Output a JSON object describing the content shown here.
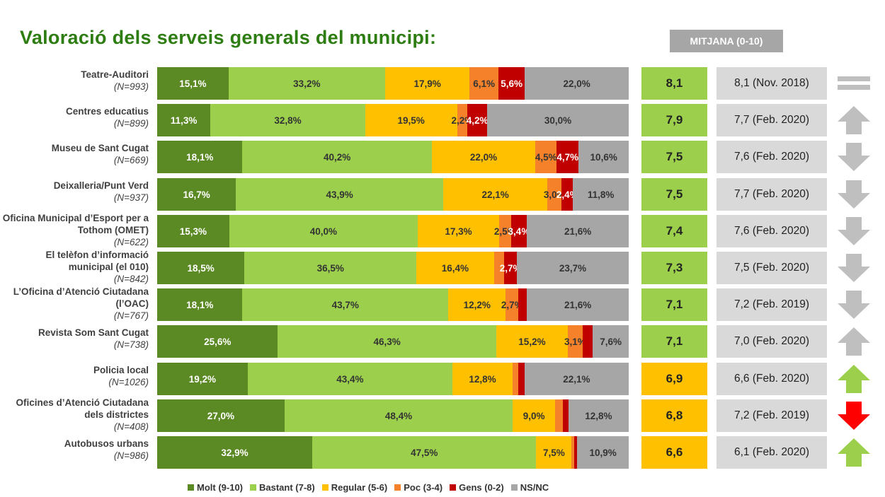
{
  "title": "Valoració dels serveis generals del municipi:",
  "mitjana_header": "MITJANA (0-10)",
  "colors": {
    "molt": "#5b8a25",
    "bastant": "#9bcf4c",
    "regular": "#ffc000",
    "poc": "#f5822a",
    "gens": "#c00000",
    "nsnc": "#a6a6a6",
    "score_green": "#9bcf4c",
    "score_yellow": "#ffc000",
    "arrow_grey": "#bfbfbf",
    "arrow_green": "#9bcf4c",
    "arrow_red": "#ff0000"
  },
  "chart_data": {
    "type": "bar",
    "orientation": "horizontal-stacked-100",
    "series": [
      {
        "name": "Molt (9-10)",
        "key": "molt"
      },
      {
        "name": "Bastant (7-8)",
        "key": "bastant"
      },
      {
        "name": "Regular (5-6)",
        "key": "regular"
      },
      {
        "name": "Poc (3-4)",
        "key": "poc"
      },
      {
        "name": "Gens (0-2)",
        "key": "gens"
      },
      {
        "name": "NS/NC",
        "key": "nsnc"
      }
    ],
    "rows": [
      {
        "name": "Teatre-Auditori",
        "n": "(N=993)",
        "values": [
          15.1,
          33.2,
          17.9,
          6.1,
          5.6,
          22.0
        ],
        "labels": [
          "15,1%",
          "33,2%",
          "17,9%",
          "6,1%",
          "5,6%",
          "22,0%"
        ],
        "score": "8,1",
        "score_color": "green",
        "previous": "8,1 (Nov. 2018)",
        "trend": "equal"
      },
      {
        "name": "Centres educatius",
        "n": "(N=899)",
        "values": [
          11.3,
          32.8,
          19.5,
          2.2,
          4.2,
          30.0
        ],
        "labels": [
          "11,3%",
          "32,8%",
          "19,5%",
          "2,2%",
          "4,2%",
          "30,0%"
        ],
        "score": "7,9",
        "score_color": "green",
        "previous": "7,7 (Feb. 2020)",
        "trend": "up-grey"
      },
      {
        "name": "Museu de Sant Cugat",
        "n": "(N=669)",
        "values": [
          18.1,
          40.2,
          22.0,
          4.5,
          4.7,
          10.6
        ],
        "labels": [
          "18,1%",
          "40,2%",
          "22,0%",
          "4,5%",
          "4,7%",
          "10,6%"
        ],
        "score": "7,5",
        "score_color": "green",
        "previous": "7,6 (Feb. 2020)",
        "trend": "down-grey"
      },
      {
        "name": "Deixalleria/Punt Verd",
        "n": "(N=937)",
        "values": [
          16.7,
          43.9,
          22.1,
          3.0,
          2.4,
          11.8
        ],
        "labels": [
          "16,7%",
          "43,9%",
          "22,1%",
          "3,0%",
          "2,4%",
          "11,8%"
        ],
        "score": "7,5",
        "score_color": "green",
        "previous": "7,7 (Feb. 2020)",
        "trend": "down-grey"
      },
      {
        "name": "Oficina Municipal d’Esport per a Tothom (OMET)",
        "n": "(N=622)",
        "values": [
          15.3,
          40.0,
          17.3,
          2.5,
          3.4,
          21.6
        ],
        "labels": [
          "15,3%",
          "40,0%",
          "17,3%",
          "2,5%",
          "3,4%",
          "21,6%"
        ],
        "score": "7,4",
        "score_color": "green",
        "previous": "7,6 (Feb. 2020)",
        "trend": "down-grey"
      },
      {
        "name": "El telèfon d’informació municipal (el 010)",
        "n": "(N=842)",
        "values": [
          18.5,
          36.5,
          16.4,
          2.2,
          2.7,
          23.7
        ],
        "labels": [
          "18,5%",
          "36,5%",
          "16,4%",
          "",
          "2,7%",
          "23,7%"
        ],
        "score": "7,3",
        "score_color": "green",
        "previous": "7,5 (Feb. 2020)",
        "trend": "down-grey"
      },
      {
        "name": "L’Oficina d’Atenció Ciutadana (l’OAC)",
        "n": "(N=767)",
        "values": [
          18.1,
          43.7,
          12.2,
          2.7,
          1.8,
          21.6
        ],
        "labels": [
          "18,1%",
          "43,7%",
          "12,2%",
          "2,7%",
          "",
          "21,6%"
        ],
        "score": "7,1",
        "score_color": "green",
        "previous": "7,2 (Feb. 2019)",
        "trend": "down-grey"
      },
      {
        "name": "Revista Som Sant Cugat",
        "n": "(N=738)",
        "values": [
          25.6,
          46.3,
          15.2,
          3.1,
          2.2,
          7.6
        ],
        "labels": [
          "25,6%",
          "46,3%",
          "15,2%",
          "3,1%",
          "",
          "7,6%"
        ],
        "score": "7,1",
        "score_color": "green",
        "previous": "7,0 (Feb. 2020)",
        "trend": "up-grey"
      },
      {
        "name": "Policia local",
        "n": "(N=1026)",
        "values": [
          19.2,
          43.4,
          12.8,
          1.2,
          1.3,
          22.1
        ],
        "labels": [
          "19,2%",
          "43,4%",
          "12,8%",
          "",
          "",
          "22,1%"
        ],
        "score": "6,9",
        "score_color": "yellow",
        "previous": "6,6 (Feb. 2020)",
        "trend": "up-green"
      },
      {
        "name": "Oficines d’Atenció Ciutadana dels districtes",
        "n": "(N=408)",
        "values": [
          27.0,
          48.4,
          9.0,
          1.7,
          1.1,
          12.8
        ],
        "labels": [
          "27,0%",
          "48,4%",
          "9,0%",
          "",
          "",
          "12,8%"
        ],
        "score": "6,8",
        "score_color": "yellow",
        "previous": "7,2 (Feb. 2019)",
        "trend": "down-red"
      },
      {
        "name": "Autobusos urbans",
        "n": "(N=986)",
        "values": [
          32.9,
          47.5,
          7.5,
          0.6,
          0.6,
          10.9
        ],
        "labels": [
          "32,9%",
          "47,5%",
          "7,5%",
          "",
          "",
          "10,9%"
        ],
        "score": "6,6",
        "score_color": "yellow",
        "previous": "6,1 (Feb. 2020)",
        "trend": "up-green"
      }
    ],
    "legend": [
      "Molt (9-10)",
      "Bastant (7-8)",
      "Regular (5-6)",
      "Poc (3-4)",
      "Gens (0-2)",
      "NS/NC"
    ],
    "legend_position": "bottom",
    "xlim": [
      0,
      100
    ]
  }
}
